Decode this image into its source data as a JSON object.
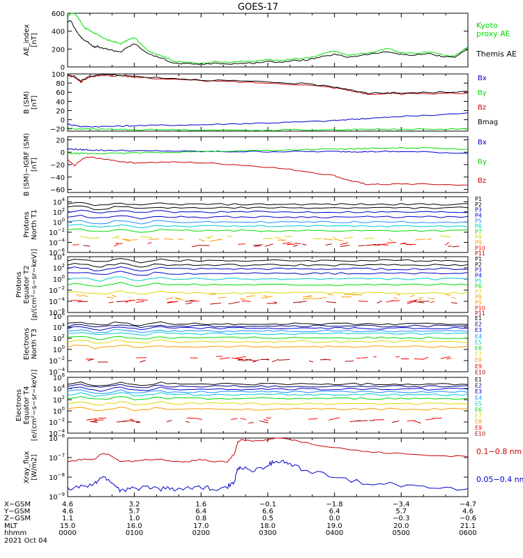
{
  "title": "GOES-17",
  "colors": {
    "black": "#000000",
    "green": "#00dd00",
    "blue": "#0000cc",
    "red": "#cc0000",
    "navy": "#000080",
    "dodger": "#1e90ff",
    "cyan": "#00cccc",
    "teal": "#00aa88",
    "yellow": "#d8d800",
    "orange": "#ff9900",
    "darkred": "#aa0000",
    "brightred": "#ff0000"
  },
  "chart_data": [
    {
      "type": "line",
      "id": "ae",
      "ylabel": "AE_index\n[nT]",
      "ylim": [
        0,
        600
      ],
      "yticks": [
        0,
        200,
        400,
        600
      ],
      "yticklabels": [
        "0",
        "200",
        "400",
        "600"
      ],
      "x": [
        0,
        0.05,
        0.1,
        0.15,
        0.2,
        0.25,
        0.3,
        0.35,
        0.4,
        0.45,
        0.5,
        0.6,
        0.7,
        0.8,
        0.9,
        1.0,
        1.2,
        1.4,
        1.5,
        1.6,
        1.8,
        2.0,
        2.2,
        2.4,
        2.6,
        2.8,
        3.0,
        3.2,
        3.4,
        3.6,
        3.8,
        4.0,
        4.2,
        4.4,
        4.6,
        4.8,
        5.0,
        5.2,
        5.4,
        5.6,
        5.8,
        6.0
      ],
      "series": [
        {
          "name": "Kyoto proxy AE",
          "color": "#00dd00",
          "label_lines": [
            "Kyoto",
            "proxy AE"
          ],
          "values": [
            560,
            600,
            600,
            560,
            500,
            440,
            420,
            400,
            380,
            360,
            340,
            300,
            280,
            260,
            300,
            330,
            180,
            130,
            100,
            60,
            50,
            40,
            60,
            50,
            60,
            60,
            80,
            70,
            90,
            100,
            140,
            180,
            130,
            150,
            170,
            210,
            160,
            150,
            170,
            140,
            120,
            230
          ]
        },
        {
          "name": "Themis AE",
          "color": "#000000",
          "label_lines": [
            "Themis AE"
          ],
          "values": [
            500,
            520,
            440,
            380,
            330,
            300,
            280,
            250,
            220,
            230,
            210,
            200,
            180,
            170,
            220,
            260,
            150,
            100,
            70,
            40,
            35,
            30,
            40,
            35,
            40,
            45,
            60,
            55,
            70,
            80,
            110,
            140,
            110,
            130,
            150,
            170,
            140,
            130,
            150,
            120,
            110,
            200
          ]
        }
      ]
    },
    {
      "type": "line",
      "id": "b",
      "ylabel": "B (SM)\n[nT]",
      "ylim": [
        -25,
        100
      ],
      "yticks": [
        -20,
        0,
        20,
        40,
        60,
        80,
        100
      ],
      "yticklabels": [
        "−20",
        "0",
        "20",
        "40",
        "60",
        "80",
        "100"
      ],
      "x": [
        0,
        0.1,
        0.2,
        0.3,
        0.5,
        0.8,
        1.0,
        1.5,
        2.0,
        2.5,
        3.0,
        3.5,
        4.0,
        4.2,
        4.4,
        4.5,
        4.8,
        5.0,
        5.5,
        6.0
      ],
      "series": [
        {
          "name": "Bx",
          "color": "#0000cc",
          "values": [
            -10,
            -12,
            -15,
            -15,
            -15,
            -14,
            -13,
            -12,
            -11,
            -9,
            -7,
            -5,
            -2,
            0,
            2,
            3,
            5,
            7,
            10,
            15
          ]
        },
        {
          "name": "By",
          "color": "#00dd00",
          "values": [
            -18,
            -20,
            -20,
            -20,
            -21,
            -21,
            -22,
            -22,
            -22,
            -23,
            -23,
            -22,
            -22,
            -22,
            -21,
            -21,
            -21,
            -21,
            -21,
            -20
          ]
        },
        {
          "name": "Bz",
          "color": "#cc0000",
          "values": [
            96,
            93,
            82,
            92,
            97,
            95,
            93,
            89,
            85,
            83,
            80,
            77,
            70,
            65,
            58,
            56,
            57,
            56,
            57,
            58
          ]
        },
        {
          "name": "Bmag",
          "color": "#000000",
          "values": [
            98,
            95,
            84,
            94,
            99,
            97,
            95,
            91,
            87,
            85,
            82,
            79,
            72,
            67,
            60,
            58,
            59,
            58,
            60,
            62
          ]
        }
      ]
    },
    {
      "type": "line",
      "id": "bi",
      "ylabel": "B (SM)−IGRF (SM)\n[nT]",
      "ylim": [
        -65,
        25
      ],
      "yticks": [
        -60,
        -40,
        -20,
        0,
        20
      ],
      "yticklabels": [
        "−60",
        "−40",
        "−20",
        "0",
        "20"
      ],
      "x": [
        0,
        0.1,
        0.2,
        0.3,
        0.5,
        0.8,
        1.0,
        1.5,
        2.0,
        2.5,
        3.0,
        3.5,
        4.0,
        4.2,
        4.4,
        4.5,
        4.8,
        5.0,
        5.5,
        6.0
      ],
      "series": [
        {
          "name": "Bx",
          "color": "#0000cc",
          "values": [
            5,
            5,
            4,
            4,
            3,
            3,
            2,
            2,
            1,
            1,
            1,
            1,
            1,
            1,
            1,
            1,
            1,
            1,
            0,
            -2
          ]
        },
        {
          "name": "By",
          "color": "#00dd00",
          "values": [
            -2,
            -2,
            -2,
            -2,
            -2,
            -2,
            -1,
            0,
            1,
            2,
            3,
            4,
            5,
            5,
            6,
            6,
            6,
            7,
            7,
            5
          ]
        },
        {
          "name": "Bz",
          "color": "#cc0000",
          "values": [
            -12,
            -22,
            -12,
            -8,
            -10,
            -15,
            -17,
            -16,
            -17,
            -20,
            -24,
            -30,
            -38,
            -45,
            -50,
            -52,
            -52,
            -51,
            -52,
            -53
          ]
        }
      ]
    },
    {
      "type": "line",
      "id": "pn",
      "log": true,
      "ylabel": "Protons\nNorth T1",
      "ylim": [
        -6,
        5
      ],
      "ytick_exponents": [
        -6,
        -4,
        -2,
        0,
        2,
        4
      ],
      "channels": [
        {
          "name": "P1",
          "color": "#000000",
          "level": 3.5
        },
        {
          "name": "P2",
          "color": "#000000",
          "level": 2.8
        },
        {
          "name": "P3",
          "color": "#0000cc",
          "level": 2.0
        },
        {
          "name": "P4",
          "color": "#0000cc",
          "level": 1.0
        },
        {
          "name": "P5",
          "color": "#1e90ff",
          "level": 0.0
        },
        {
          "name": "P6",
          "color": "#00cccc",
          "level": -0.8
        },
        {
          "name": "P7",
          "color": "#00dd00",
          "level": -1.7
        },
        {
          "name": "P8",
          "color": "#d8d800",
          "level": -3.0
        },
        {
          "name": "P9",
          "color": "#ff9900",
          "level": -3.5
        },
        {
          "name": "P10",
          "color": "#ff0000",
          "level": -4.3
        },
        {
          "name": "P11",
          "color": "#aa0000",
          "level": -4.6
        }
      ]
    },
    {
      "type": "line",
      "id": "pe",
      "log": true,
      "ylabel": "Protons\nEquator T2\n[p/(cm²−s−sr−keV)]",
      "ylim": [
        -6,
        4
      ],
      "ytick_exponents": [
        -6,
        -4,
        -2,
        0,
        2,
        4
      ],
      "channels": [
        {
          "name": "P1",
          "color": "#000000",
          "level": 3.3
        },
        {
          "name": "P2",
          "color": "#000000",
          "level": 2.5
        },
        {
          "name": "P3",
          "color": "#0000cc",
          "level": 1.8
        },
        {
          "name": "P4",
          "color": "#0000cc",
          "level": 1.0
        },
        {
          "name": "P5",
          "color": "#00cccc",
          "level": 0.0
        },
        {
          "name": "P6",
          "color": "#00dd00",
          "level": -1.0
        },
        {
          "name": "P7",
          "color": "#d8d800",
          "level": -2.5
        },
        {
          "name": "P8",
          "color": "#ff9900",
          "level": -3.0
        },
        {
          "name": "P9",
          "color": "#ff9900",
          "level": -3.5
        },
        {
          "name": "P10",
          "color": "#ff0000",
          "level": -4.0
        },
        {
          "name": "P11",
          "color": "#aa0000",
          "level": -4.2
        }
      ]
    },
    {
      "type": "line",
      "id": "en",
      "log": true,
      "ylabel": "Electrons\nNorth T3",
      "ylim": [
        -4,
        6
      ],
      "ytick_exponents": [
        -4,
        -2,
        0,
        2,
        4,
        6
      ],
      "channels": [
        {
          "name": "E1",
          "color": "#000000",
          "level": 4.6
        },
        {
          "name": "E2",
          "color": "#000080",
          "level": 4.2
        },
        {
          "name": "E3",
          "color": "#0000cc",
          "level": 3.8
        },
        {
          "name": "E4",
          "color": "#1e90ff",
          "level": 3.3
        },
        {
          "name": "E5",
          "color": "#00cccc",
          "level": 2.8
        },
        {
          "name": "E6",
          "color": "#00dd00",
          "level": 2.1
        },
        {
          "name": "E7",
          "color": "#d8d800",
          "level": 1.4
        },
        {
          "name": "E8",
          "color": "#ff9900",
          "level": 0.5
        },
        {
          "name": "E9",
          "color": "#ff0000",
          "level": -1.5
        },
        {
          "name": "E10",
          "color": "#aa0000",
          "level": -2.0
        }
      ]
    },
    {
      "type": "line",
      "id": "ee",
      "log": true,
      "ylabel": "Electrons\nEquator T4\n[e/(cm²−s−sr−keV)]",
      "ylim": [
        -4,
        6
      ],
      "ytick_exponents": [
        -4,
        -2,
        0,
        2,
        4,
        6
      ],
      "channels": [
        {
          "name": "E1",
          "color": "#000000",
          "level": 4.8
        },
        {
          "name": "E2",
          "color": "#000080",
          "level": 4.4
        },
        {
          "name": "E3",
          "color": "#0000cc",
          "level": 3.9
        },
        {
          "name": "E4",
          "color": "#1e90ff",
          "level": 3.4
        },
        {
          "name": "E5",
          "color": "#00cccc",
          "level": 2.9
        },
        {
          "name": "E6",
          "color": "#00dd00",
          "level": 2.2
        },
        {
          "name": "E7",
          "color": "#d8d800",
          "level": 1.3
        },
        {
          "name": "E8",
          "color": "#ff9900",
          "level": 0.3
        },
        {
          "name": "E9",
          "color": "#ff0000",
          "level": -1.5
        },
        {
          "name": "E10",
          "color": "#aa0000",
          "level": -2.0
        }
      ]
    },
    {
      "type": "line",
      "id": "xr",
      "log": true,
      "ylabel": "Xray_flux\n[W/m2]",
      "ylim": [
        -9,
        -6
      ],
      "ytick_exponents": [
        -9,
        -8,
        -7,
        -6
      ],
      "x": [
        0,
        0.2,
        0.4,
        0.5,
        0.6,
        0.7,
        0.8,
        1.0,
        1.2,
        1.4,
        1.6,
        1.8,
        2.0,
        2.2,
        2.4,
        2.5,
        2.55,
        2.6,
        2.8,
        3.0,
        3.1,
        3.2,
        3.3,
        3.5,
        4.0,
        4.5,
        5.0,
        5.5,
        6.0
      ],
      "series": [
        {
          "name": "0.1−0.8 nm",
          "color": "#cc0000",
          "values": [
            -7.2,
            -7.1,
            -7.1,
            -6.8,
            -6.8,
            -7.0,
            -7.2,
            -7.2,
            -7.1,
            -7.1,
            -7.2,
            -7.2,
            -7.1,
            -7.2,
            -7.2,
            -6.8,
            -6.2,
            -6.1,
            -6.15,
            -6.1,
            -6.0,
            -6.0,
            -6.05,
            -6.2,
            -6.5,
            -6.7,
            -6.8,
            -6.9,
            -6.95
          ]
        },
        {
          "name": "0.05−0.4 nm",
          "color": "#0000cc",
          "values": [
            -8.6,
            -8.5,
            -8.4,
            -8.0,
            -8.1,
            -8.4,
            -8.7,
            -8.6,
            -8.5,
            -8.6,
            -8.6,
            -8.6,
            -8.5,
            -8.6,
            -8.5,
            -8.2,
            -7.6,
            -7.5,
            -7.7,
            -7.4,
            -7.2,
            -7.2,
            -7.3,
            -7.6,
            -8.0,
            -8.3,
            -8.4,
            -8.5,
            -8.6
          ]
        }
      ]
    }
  ],
  "xaxis": {
    "row_labels": [
      "X−GSM",
      "Y−GSM",
      "Z−GSM",
      "MLT",
      "hhmm",
      "2021 Oct 04"
    ],
    "columns": [
      {
        "x": "4.6",
        "y": "4.6",
        "z": "1.1",
        "mlt": "15.0",
        "hhmm": "0000"
      },
      {
        "x": "3.2",
        "y": "5.7",
        "z": "1.0",
        "mlt": "16.0",
        "hhmm": "0100"
      },
      {
        "x": "1.6",
        "y": "6.4",
        "z": "0.8",
        "mlt": "17.0",
        "hhmm": "0200"
      },
      {
        "x": "−0.1",
        "y": "6.6",
        "z": "0.5",
        "mlt": "18.0",
        "hhmm": "0300"
      },
      {
        "x": "−1.8",
        "y": "6.4",
        "z": "0.0",
        "mlt": "19.0",
        "hhmm": "0400"
      },
      {
        "x": "−3.4",
        "y": "5.7",
        "z": "−0.3",
        "mlt": "20.0",
        "hhmm": "0500"
      },
      {
        "x": "−4.7",
        "y": "4.6",
        "z": "−0.6",
        "mlt": "21.1",
        "hhmm": "0600"
      }
    ]
  }
}
